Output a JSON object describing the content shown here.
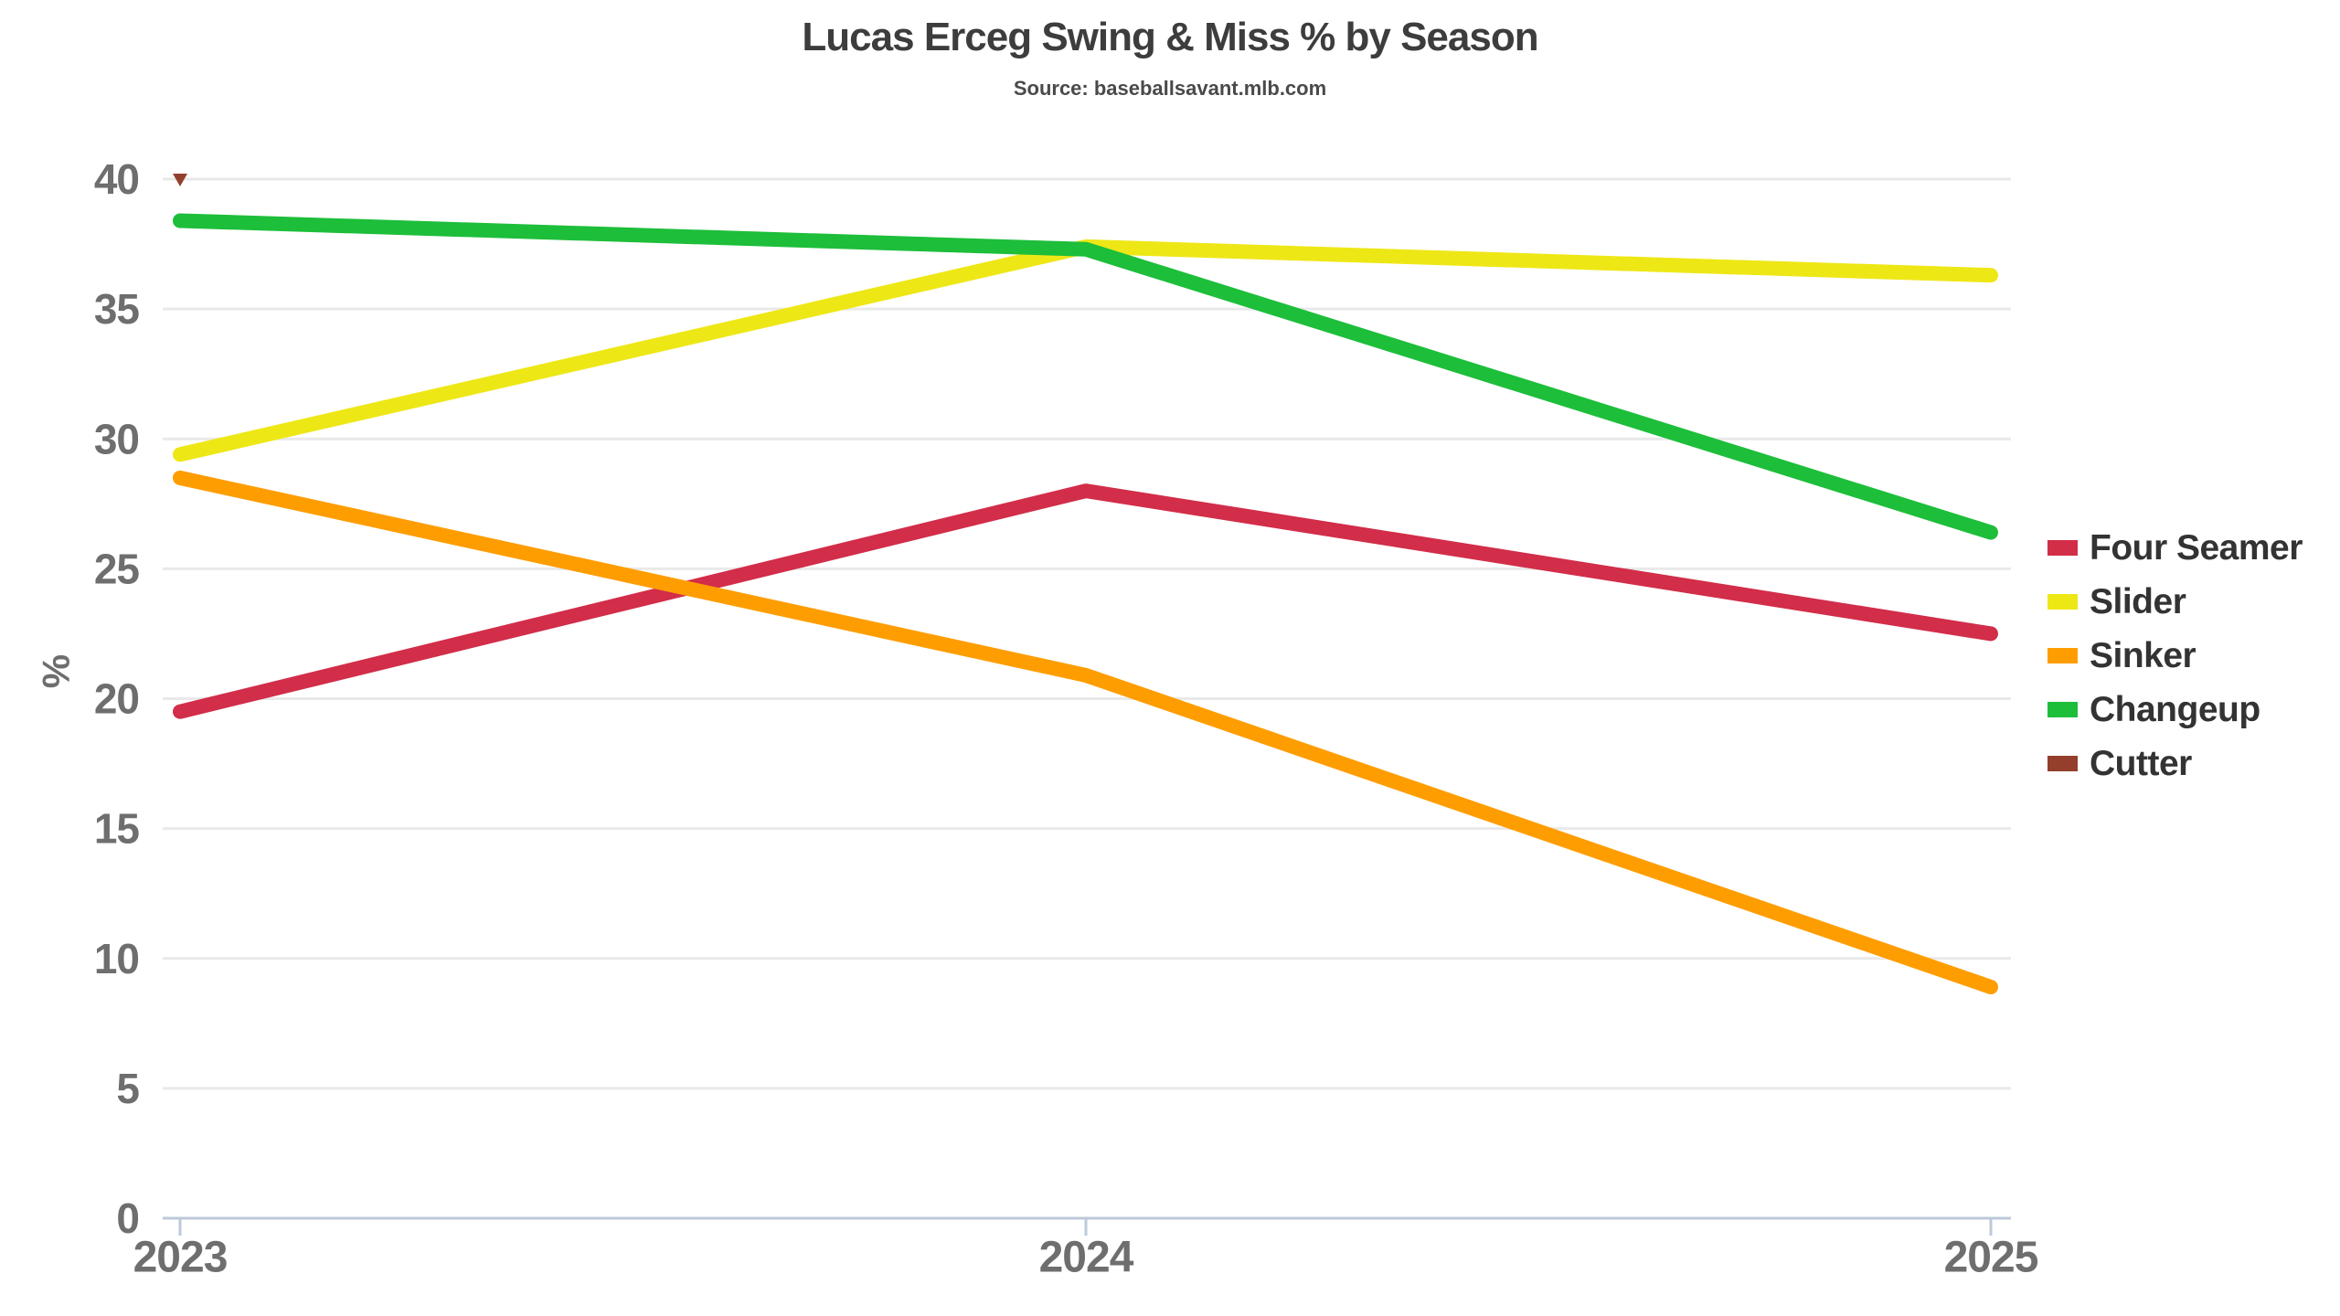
{
  "figure": {
    "title": "Lucas Erceg Swing & Miss % by Season",
    "subtitle": "Source: baseballsavant.mlb.com"
  },
  "chart_data": {
    "type": "line",
    "title": "Lucas Erceg Swing & Miss % by Season",
    "subtitle": "Source: baseballsavant.mlb.com",
    "x": [
      2023,
      2024,
      2025
    ],
    "xlabel": "",
    "ylabel": "%",
    "ylim": [
      0,
      40
    ],
    "yticks": [
      0,
      5,
      10,
      15,
      20,
      25,
      30,
      35,
      40
    ],
    "grid": true,
    "legend_position": "right",
    "series": [
      {
        "name": "Four Seamer",
        "color": "#D22D49",
        "values": [
          19.5,
          28.0,
          22.5
        ]
      },
      {
        "name": "Slider",
        "color": "#EEE716",
        "values": [
          29.4,
          37.4,
          36.3
        ]
      },
      {
        "name": "Sinker",
        "color": "#FE9D00",
        "values": [
          28.5,
          20.9,
          8.9
        ]
      },
      {
        "name": "Changeup",
        "color": "#1DBE3A",
        "values": [
          38.4,
          37.3,
          26.4
        ]
      },
      {
        "name": "Cutter",
        "color": "#933F2C",
        "values": [
          40.0,
          null,
          null
        ],
        "marker": "triangle-down"
      }
    ],
    "colors": {
      "axis_line": "#bdc9da",
      "gridline": "#e9e9e9",
      "tick_label": "#6e6e6e",
      "title": "#3d3d3d",
      "legend_text": "#333333"
    }
  }
}
